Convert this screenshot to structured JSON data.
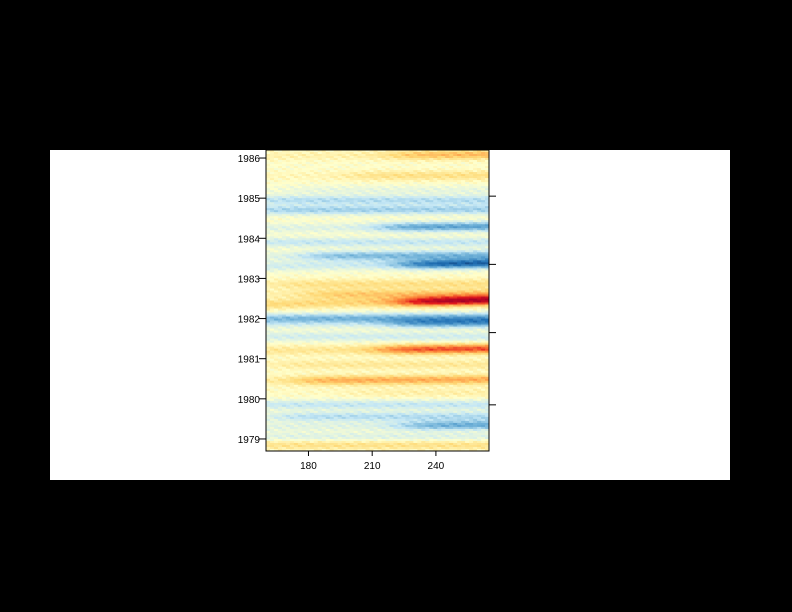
{
  "chart_data": {
    "type": "heatmap",
    "title": "",
    "xlabel": "",
    "ylabel": "",
    "colormap": [
      "#08306b",
      "#2171b5",
      "#6baed6",
      "#c6e8f5",
      "#ffffcc",
      "#fed976",
      "#fd8d3c",
      "#e31a1c",
      "#a50026"
    ],
    "xlim": [
      160,
      265
    ],
    "ylim": [
      1978.7,
      1986.2
    ],
    "x_ticks": [
      180,
      210,
      240
    ],
    "x_tick_labels": [
      "180",
      "210",
      "240"
    ],
    "y_ticks": [
      1979,
      1980,
      1981,
      1982,
      1983,
      1984,
      1985,
      1986
    ],
    "y_tick_labels": [
      "1979",
      "1980",
      "1981",
      "1982",
      "1983",
      "1984",
      "1985",
      "1986"
    ],
    "right_axis_ticks": [
      1979.85,
      1981.65,
      1983.35,
      1985.05
    ],
    "bands": [
      {
        "t": 1986.05,
        "v": 0.35,
        "x_from": 220,
        "slope": 0.25
      },
      {
        "t": 1985.55,
        "v": 0.2,
        "x_from": 200,
        "slope": 0.1
      },
      {
        "t": 1985.2,
        "v": -0.1,
        "x_from": 170,
        "slope": 0
      },
      {
        "t": 1984.95,
        "v": -0.3,
        "x_from": 160,
        "slope": 0
      },
      {
        "t": 1984.7,
        "v": -0.35,
        "x_from": 160,
        "slope": 0.1
      },
      {
        "t": 1984.25,
        "v": -0.55,
        "x_from": 215,
        "slope": 0.3
      },
      {
        "t": 1983.9,
        "v": -0.25,
        "x_from": 160,
        "slope": 0
      },
      {
        "t": 1983.55,
        "v": -0.45,
        "x_from": 180,
        "slope": 0.2
      },
      {
        "t": 1983.3,
        "v": -0.8,
        "x_from": 225,
        "slope": 0.5
      },
      {
        "t": 1982.85,
        "v": 0.2,
        "x_from": 165,
        "slope": 0.1
      },
      {
        "t": 1982.6,
        "v": 0.3,
        "x_from": 180,
        "slope": 0.1
      },
      {
        "t": 1982.35,
        "v": 0.95,
        "x_from": 225,
        "slope": 0.7
      },
      {
        "t": 1982.0,
        "v": -0.45,
        "x_from": 160,
        "slope": 0.2
      },
      {
        "t": 1981.85,
        "v": -0.55,
        "x_from": 220,
        "slope": 0.3
      },
      {
        "t": 1981.55,
        "v": -0.2,
        "x_from": 160,
        "slope": 0
      },
      {
        "t": 1981.2,
        "v": 0.65,
        "x_from": 215,
        "slope": 0.3
      },
      {
        "t": 1980.85,
        "v": 0.15,
        "x_from": 165,
        "slope": 0
      },
      {
        "t": 1980.45,
        "v": 0.4,
        "x_from": 175,
        "slope": 0.2
      },
      {
        "t": 1980.15,
        "v": 0.1,
        "x_from": 200,
        "slope": 0
      },
      {
        "t": 1979.85,
        "v": -0.25,
        "x_from": 160,
        "slope": 0
      },
      {
        "t": 1979.55,
        "v": -0.3,
        "x_from": 165,
        "slope": 0.1
      },
      {
        "t": 1979.3,
        "v": -0.5,
        "x_from": 225,
        "slope": 0.3
      },
      {
        "t": 1979.05,
        "v": -0.15,
        "x_from": 160,
        "slope": 0
      },
      {
        "t": 1978.85,
        "v": 0.2,
        "x_from": 160,
        "slope": 0
      }
    ]
  }
}
